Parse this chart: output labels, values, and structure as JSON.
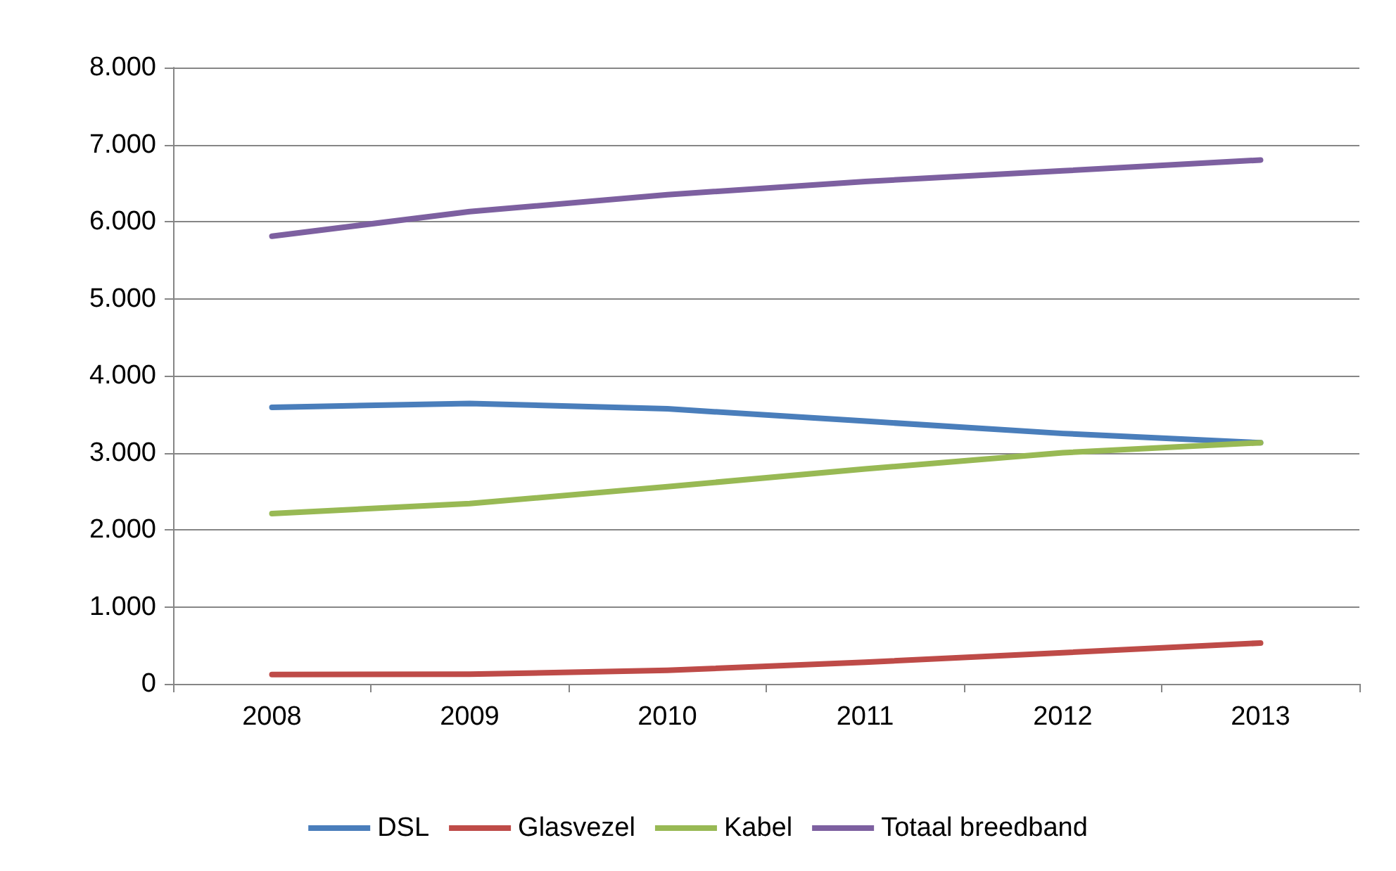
{
  "chart_data": {
    "type": "line",
    "categories": [
      "2008",
      "2009",
      "2010",
      "2011",
      "2012",
      "2013"
    ],
    "series": [
      {
        "name": "DSL",
        "color": "#4a7ebb",
        "values": [
          3590,
          3640,
          3570,
          3410,
          3250,
          3130
        ]
      },
      {
        "name": "Glasvezel",
        "color": "#be4b48",
        "values": [
          120,
          125,
          175,
          280,
          405,
          530
        ]
      },
      {
        "name": "Kabel",
        "color": "#98b954",
        "values": [
          2210,
          2340,
          2560,
          2790,
          3000,
          3130
        ]
      },
      {
        "name": "Totaal breedband",
        "color": "#7d60a0",
        "values": [
          5810,
          6130,
          6350,
          6520,
          6660,
          6800
        ]
      }
    ],
    "ylim": [
      0,
      8000
    ],
    "yticks": [
      {
        "value": 0,
        "label": "0"
      },
      {
        "value": 1000,
        "label": "1.000"
      },
      {
        "value": 2000,
        "label": "2.000"
      },
      {
        "value": 3000,
        "label": "3.000"
      },
      {
        "value": 4000,
        "label": "4.000"
      },
      {
        "value": 5000,
        "label": "5.000"
      },
      {
        "value": 6000,
        "label": "6.000"
      },
      {
        "value": 7000,
        "label": "7.000"
      },
      {
        "value": 8000,
        "label": "8.000"
      }
    ],
    "grid": "y",
    "legend": "bottom",
    "marker": "none",
    "line_style": "solid"
  }
}
